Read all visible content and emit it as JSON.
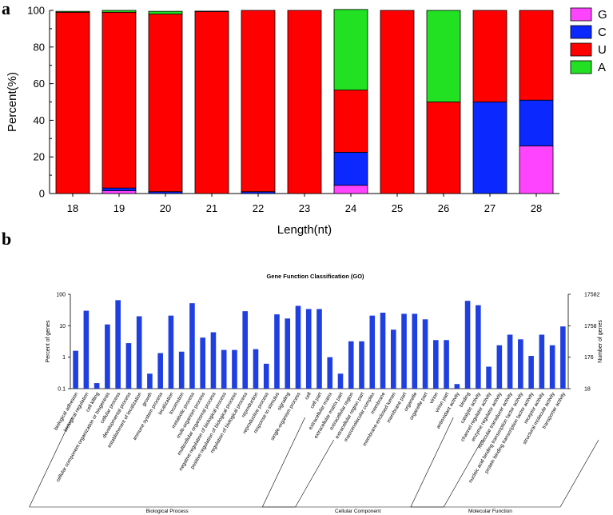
{
  "panel_a_letter": "a",
  "panel_b_letter": "b",
  "chart_data": [
    {
      "type": "bar",
      "stacked": true,
      "title": "",
      "xlabel": "Length(nt)",
      "ylabel": "Percent(%)",
      "ylim": [
        0,
        100
      ],
      "yticks": [
        0,
        20,
        40,
        60,
        80,
        100
      ],
      "categories": [
        "18",
        "19",
        "20",
        "21",
        "22",
        "23",
        "24",
        "25",
        "26",
        "27",
        "28"
      ],
      "series": [
        {
          "name": "G",
          "color": "#ff44ff",
          "values": [
            0,
            1.5,
            0,
            0,
            0,
            0,
            4.5,
            0,
            0,
            0,
            26
          ]
        },
        {
          "name": "C",
          "color": "#0a28ff",
          "values": [
            0,
            1.5,
            1,
            0,
            1,
            0,
            18,
            0,
            0,
            50,
            25
          ]
        },
        {
          "name": "U",
          "color": "#ff0000",
          "values": [
            99,
            96,
            97,
            99.5,
            99,
            100,
            34,
            100,
            50,
            50,
            49
          ]
        },
        {
          "name": "A",
          "color": "#22e022",
          "values": [
            0.5,
            1,
            1.5,
            0.1,
            0,
            0,
            44,
            0,
            50,
            0,
            0
          ]
        }
      ],
      "legend_position": "top-right"
    },
    {
      "type": "bar",
      "title": "Gene Function Classification (GO)",
      "ylabel": "Percent of genes",
      "y2label": "Number of genes",
      "yscale": "log",
      "ylim": [
        0.1,
        100
      ],
      "yticks": [
        "0.1",
        "1",
        "10",
        "100"
      ],
      "y2ticks": [
        "18",
        "176",
        "1758",
        "17582"
      ],
      "bar_color": "#1f3fe0",
      "categories": [
        "biological adhesion",
        "biological regulation",
        "cell killing",
        "cellular component organization or biogenesis",
        "cellular process",
        "developmental process",
        "establishment of localization",
        "growth",
        "immune system process",
        "localization",
        "locomotion",
        "metabolic process",
        "multi-organism process",
        "multicellular organismal process",
        "negative regulation of biological process",
        "positive regulation of biological process",
        "regulation of biological process",
        "reproduction",
        "reproductive process",
        "response to stimulus",
        "signaling",
        "single-organism process",
        "cell",
        "cell part",
        "extracellular matrix",
        "extracellular matrix part",
        "extracellular region",
        "extracellular region part",
        "macromolecular complex",
        "membrane",
        "membrane-enclosed lumen",
        "membrane part",
        "organelle",
        "organelle part",
        "virion",
        "virion part",
        "antioxidant activity",
        "binding",
        "catalytic activity",
        "channel regulator activity",
        "enzyme regulator activity",
        "molecular transducer activity",
        "nucleic acid binding transcription factor activity",
        "protein binding transcription factor activity",
        "receptor activity",
        "structural molecule activity",
        "transporter activity"
      ],
      "values": [
        1.6,
        30,
        0.15,
        11,
        65,
        2.8,
        20,
        0.3,
        1.35,
        21,
        1.5,
        52,
        4.2,
        6.2,
        1.7,
        1.7,
        29,
        1.8,
        0.62,
        23,
        17,
        43,
        34,
        34,
        1.0,
        0.3,
        3.2,
        3.2,
        21,
        26,
        7.5,
        24,
        24,
        16,
        3.5,
        3.5,
        0.14,
        62,
        45,
        0.5,
        2.4,
        5.2,
        3.7,
        1.1,
        5.2,
        2.4,
        9.5
      ],
      "groups": [
        {
          "name": "Biological Process",
          "start": 0,
          "end": 21
        },
        {
          "name": "Cellular Component",
          "start": 22,
          "end": 35
        },
        {
          "name": "Molecular Function",
          "start": 36,
          "end": 46
        }
      ]
    }
  ]
}
